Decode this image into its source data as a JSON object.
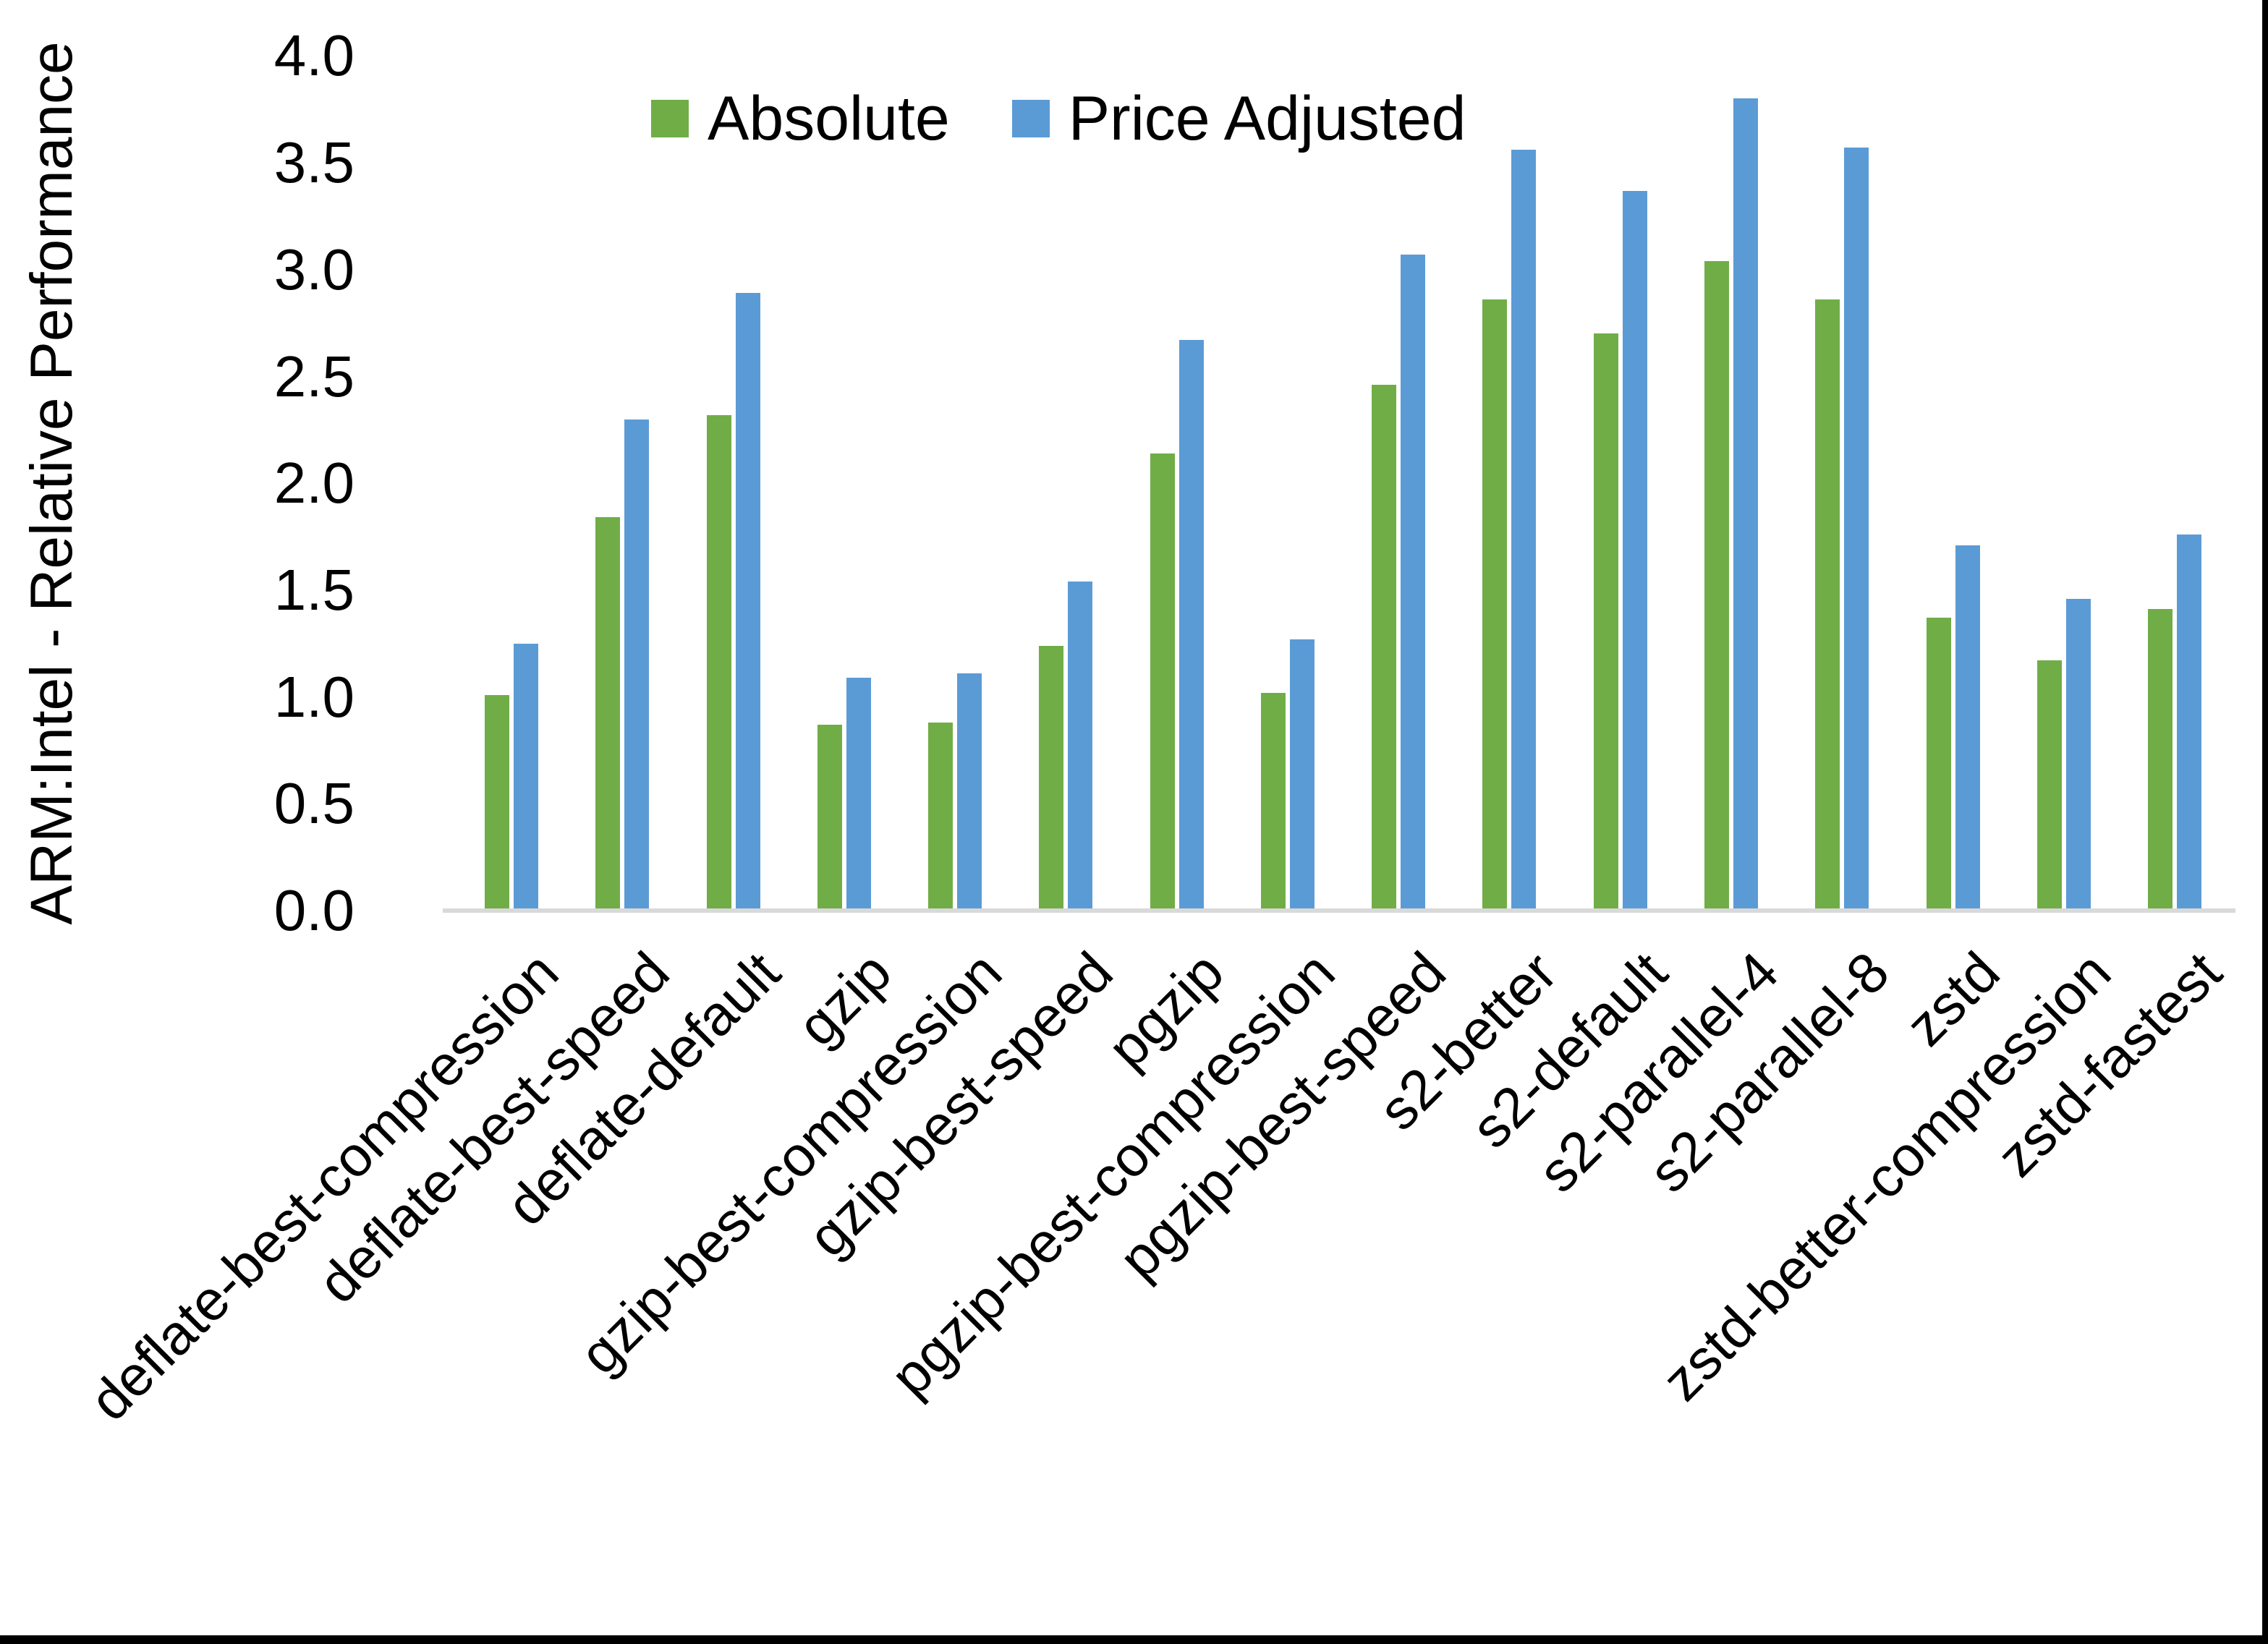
{
  "figure": {
    "background": "#FFFFFF",
    "frame_border_color": "#000000"
  },
  "chart_data": {
    "type": "bar",
    "title": "",
    "xlabel": "",
    "ylabel": "ARM:Intel - Relative Performance",
    "ylim": [
      0.0,
      4.0
    ],
    "ytick_labels": [
      "4.0",
      "3.5",
      "3.0",
      "2.5",
      "2.0",
      "1.5",
      "1.0",
      "0.5",
      "0.0"
    ],
    "grid": false,
    "legend_position": "top-center",
    "axis_line_color": "#D9D9D9",
    "categories": [
      "deflate-best-compression",
      "deflate-best-speed",
      "deflate-default",
      "gzip",
      "gzip-best-compression",
      "gzip-best-speed",
      "pgzip",
      "pgzip-best-compression",
      "pgzip-best-speed",
      "s2-better",
      "s2-default",
      "s2-parallel-4",
      "s2-parallel-8",
      "zstd",
      "zstd-better-compression",
      "zstd-fastest"
    ],
    "series": [
      {
        "name": "Absolute",
        "color": "#70AD47",
        "values": [
          1.01,
          1.84,
          2.32,
          0.87,
          0.88,
          1.24,
          2.14,
          1.02,
          2.46,
          2.86,
          2.7,
          3.04,
          2.86,
          1.37,
          1.17,
          1.41
        ]
      },
      {
        "name": "Price Adjusted",
        "color": "#5B9BD5",
        "values": [
          1.25,
          2.3,
          2.89,
          1.09,
          1.11,
          1.54,
          2.67,
          1.27,
          3.07,
          3.56,
          3.37,
          3.8,
          3.57,
          1.71,
          1.46,
          1.76
        ]
      }
    ]
  }
}
